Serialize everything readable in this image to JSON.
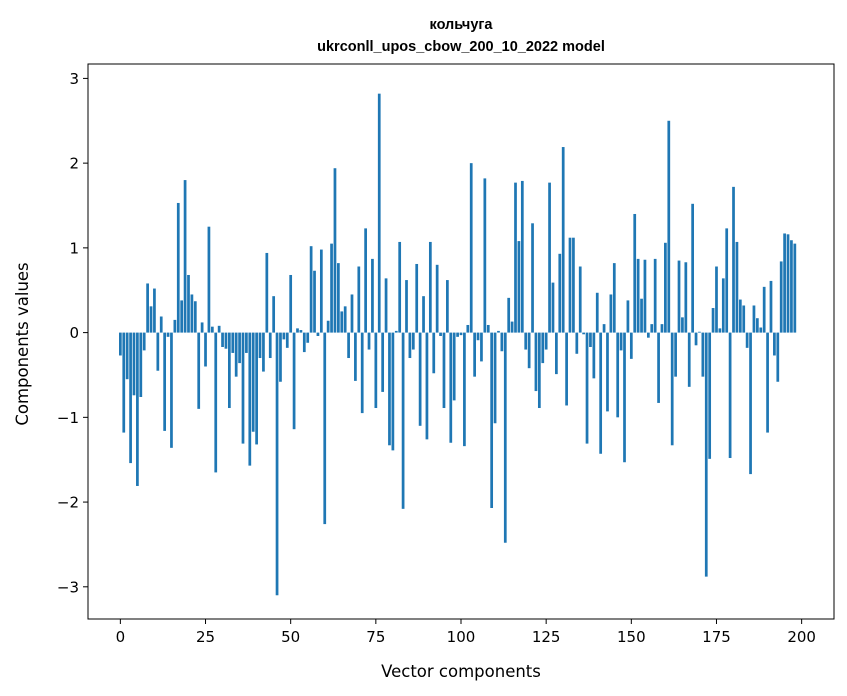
{
  "chart_data": {
    "type": "bar",
    "title": "кольчуга",
    "subtitle": "ukrconll_upos_cbow_200_10_2022 model",
    "xlabel": "Vector components",
    "ylabel": "Components values",
    "xlim": [
      -9.5,
      209.5
    ],
    "ylim": [
      -3.38,
      3.17
    ],
    "xticks": [
      0,
      25,
      50,
      75,
      100,
      125,
      150,
      175,
      200
    ],
    "yticks": [
      -3,
      -2,
      -1,
      0,
      1,
      2,
      3
    ],
    "xtick_labels": [
      "0",
      "25",
      "50",
      "75",
      "100",
      "125",
      "150",
      "175",
      "200"
    ],
    "ytick_labels": [
      "−3",
      "−2",
      "−1",
      "0",
      "1",
      "2",
      "3"
    ],
    "bar_color": "#1f77b4",
    "grid": false,
    "legend": "none",
    "values": [
      -0.27,
      -1.18,
      -0.55,
      -1.54,
      -0.74,
      -1.81,
      -0.76,
      -0.21,
      0.58,
      0.31,
      0.52,
      -0.45,
      0.19,
      -1.16,
      -0.05,
      -1.36,
      0.15,
      1.53,
      0.38,
      1.8,
      0.68,
      0.45,
      0.37,
      -0.9,
      0.12,
      -0.4,
      1.25,
      0.07,
      -1.65,
      0.08,
      -0.17,
      -0.19,
      -0.89,
      -0.24,
      -0.52,
      -0.36,
      -1.31,
      -0.24,
      -1.57,
      -1.17,
      -1.32,
      -0.3,
      -0.46,
      0.94,
      -0.3,
      0.43,
      -3.1,
      -0.58,
      -0.08,
      -0.18,
      0.68,
      -1.14,
      0.05,
      0.03,
      -0.23,
      -0.12,
      1.02,
      0.73,
      -0.04,
      0.98,
      -2.26,
      0.14,
      1.05,
      1.94,
      0.82,
      0.25,
      0.31,
      -0.3,
      0.45,
      -0.57,
      0.78,
      -0.95,
      1.23,
      -0.2,
      0.87,
      -0.89,
      2.82,
      -0.7,
      0.64,
      -1.33,
      -1.39,
      0.02,
      1.07,
      -2.08,
      0.62,
      -0.3,
      -0.2,
      0.81,
      -1.1,
      0.43,
      -1.26,
      1.07,
      -0.48,
      0.8,
      -0.04,
      -0.89,
      0.62,
      -1.3,
      -0.8,
      -0.05,
      -0.03,
      -1.34,
      0.09,
      2.0,
      -0.52,
      -0.09,
      -0.34,
      1.82,
      0.09,
      -2.07,
      -1.07,
      0.02,
      -0.22,
      -2.48,
      0.41,
      0.13,
      1.77,
      1.08,
      1.79,
      -0.2,
      -0.42,
      1.29,
      -0.69,
      -0.89,
      -0.36,
      -0.2,
      1.77,
      0.59,
      -0.49,
      0.93,
      2.19,
      -0.86,
      1.12,
      1.12,
      -0.25,
      0.78,
      -0.02,
      -1.31,
      -0.17,
      -0.54,
      0.47,
      -1.43,
      0.1,
      -0.93,
      0.45,
      0.82,
      -1.0,
      -0.21,
      -1.53,
      0.38,
      -0.31,
      1.4,
      0.87,
      0.4,
      0.86,
      -0.06,
      0.1,
      0.87,
      -0.83,
      0.1,
      1.06,
      2.5,
      -1.33,
      -0.52,
      0.85,
      0.18,
      0.83,
      -0.64,
      1.52,
      -0.15,
      0.01,
      -0.52,
      -2.88,
      -1.49,
      0.29,
      0.78,
      0.05,
      0.64,
      1.23,
      -1.48,
      1.72,
      1.07,
      0.39,
      0.32,
      -0.18,
      -1.67,
      0.32,
      0.17,
      0.06,
      0.54,
      -1.18,
      0.61,
      -0.27,
      -0.58,
      0.84,
      1.17,
      1.16,
      1.09,
      1.05
    ]
  }
}
